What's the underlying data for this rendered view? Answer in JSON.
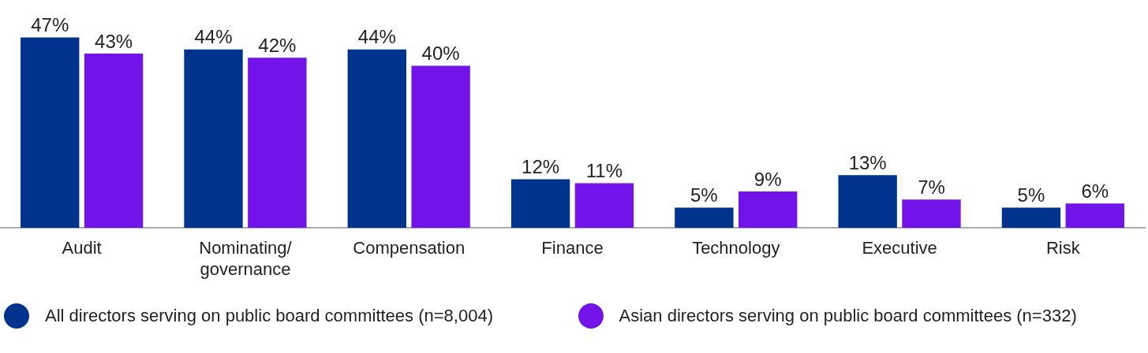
{
  "chart_data": {
    "type": "bar",
    "categories": [
      "Audit",
      "Nominating/ governance",
      "Compensation",
      "Finance",
      "Technology",
      "Executive",
      "Risk"
    ],
    "series": [
      {
        "name": "All directors serving on public board committees (n=8,004)",
        "color": "#00338d",
        "values": [
          47,
          44,
          44,
          12,
          5,
          13,
          5
        ],
        "value_labels": [
          "47%",
          "44%",
          "44%",
          "12%",
          "5%",
          "13%",
          "5%"
        ]
      },
      {
        "name": "Asian directors serving on public board committees (n=332)",
        "color": "#7213ea",
        "values": [
          43,
          42,
          40,
          11,
          9,
          7,
          6
        ],
        "value_labels": [
          "43%",
          "42%",
          "40%",
          "11%",
          "9%",
          "7%",
          "6%"
        ]
      }
    ],
    "grid": false,
    "legend": "bottom",
    "tick_labels": "x"
  }
}
